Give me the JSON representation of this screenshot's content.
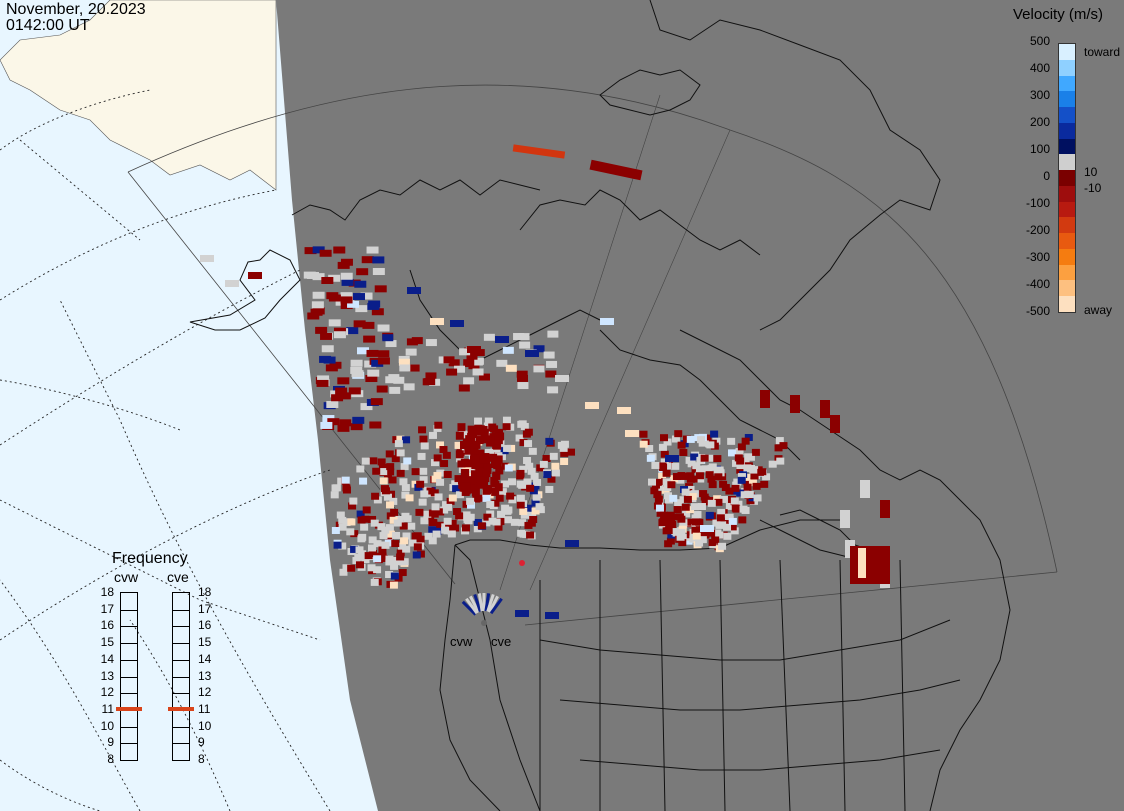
{
  "header": {
    "date": "November, 20.2023",
    "time": "0142:00 UT"
  },
  "legend": {
    "title": "Velocity (m/s)",
    "tick_labels": [
      "500",
      "400",
      "300",
      "200",
      "100",
      "0",
      "-100",
      "-200",
      "-300",
      "-400",
      "-500"
    ],
    "small_labels": [
      "10",
      "-10"
    ],
    "toward_label": "toward",
    "away_label": "away",
    "colors": [
      "#d9f0ff",
      "#8fd0ff",
      "#40a8ff",
      "#1a80e8",
      "#1450c8",
      "#0a2a9e",
      "#001060",
      "#cfcfcf",
      "#7a0000",
      "#9e0d0d",
      "#b81a10",
      "#d23a10",
      "#e85a10",
      "#f57c10",
      "#fca040",
      "#fdc080",
      "#fde0c0"
    ]
  },
  "frequency": {
    "title": "Frequency",
    "radars": [
      "cvw",
      "cve"
    ],
    "ticks": [
      "18",
      "17",
      "16",
      "15",
      "14",
      "13",
      "12",
      "11",
      "10",
      "9",
      "8"
    ],
    "current_mhz": [
      11,
      11
    ]
  },
  "radar_labels": [
    "cvw",
    "cve"
  ],
  "map": {
    "ocean_color": "#e8f6ff",
    "land_outside_color": "#fbf7e8",
    "night_color": "#7a7a7a",
    "echo_gray": "#d2d2d2"
  }
}
